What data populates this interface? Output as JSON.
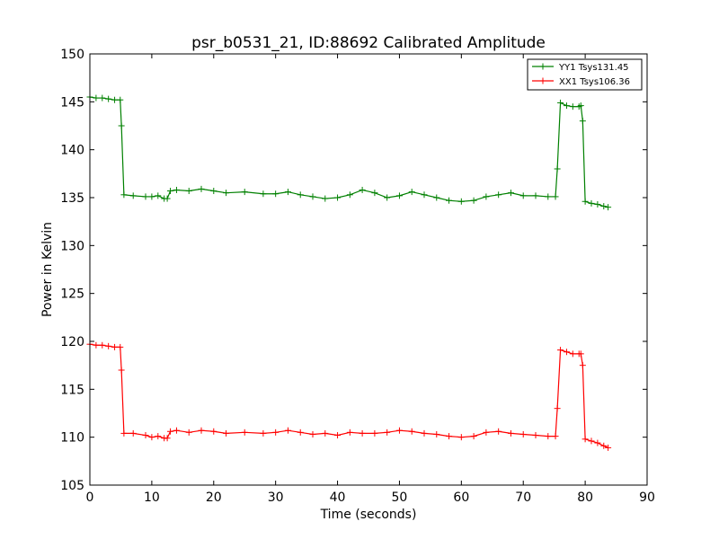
{
  "chart_data": {
    "type": "line",
    "title": "psr_b0531_21, ID:88692 Calibrated Amplitude",
    "xlabel": "Time (seconds)",
    "ylabel": "Power in Kelvin",
    "xlim": [
      0,
      90
    ],
    "ylim": [
      105,
      150
    ],
    "xticks": [
      0,
      10,
      20,
      30,
      40,
      50,
      60,
      70,
      80,
      90
    ],
    "yticks": [
      105,
      110,
      115,
      120,
      125,
      130,
      135,
      140,
      145,
      150
    ],
    "grid": false,
    "legend_position": "top-right",
    "series": [
      {
        "name": "YY1 Tsys131.45",
        "color": "#008000",
        "marker": "+",
        "x": [
          0,
          1,
          2,
          3,
          4,
          4.9,
          5.1,
          5.5,
          7,
          9,
          10,
          11,
          12,
          12.5,
          13,
          14,
          16,
          18,
          20,
          22,
          25,
          28,
          30,
          32,
          34,
          36,
          38,
          40,
          42,
          44,
          46,
          48,
          50,
          52,
          54,
          56,
          58,
          60,
          62,
          64,
          66,
          68,
          70,
          72,
          74,
          75.2,
          75.5,
          76,
          77,
          78,
          79,
          79.3,
          79.6,
          80,
          81,
          82,
          83,
          83.7
        ],
        "y": [
          145.5,
          145.4,
          145.4,
          145.3,
          145.2,
          145.2,
          142.5,
          135.3,
          135.2,
          135.1,
          135.1,
          135.2,
          134.9,
          134.9,
          135.7,
          135.8,
          135.7,
          135.9,
          135.7,
          135.5,
          135.6,
          135.4,
          135.4,
          135.6,
          135.3,
          135.1,
          134.9,
          135.0,
          135.3,
          135.8,
          135.5,
          135.0,
          135.2,
          135.6,
          135.3,
          135.0,
          134.7,
          134.6,
          134.7,
          135.1,
          135.3,
          135.5,
          135.2,
          135.2,
          135.1,
          135.1,
          138.0,
          144.9,
          144.6,
          144.5,
          144.5,
          144.6,
          143.0,
          134.6,
          134.4,
          134.3,
          134.1,
          134.0
        ]
      },
      {
        "name": "XX1 Tsys106.36",
        "color": "#ff0000",
        "marker": "+",
        "x": [
          0,
          1,
          2,
          3,
          4,
          4.9,
          5.1,
          5.5,
          7,
          9,
          10,
          11,
          12,
          12.5,
          13,
          14,
          16,
          18,
          20,
          22,
          25,
          28,
          30,
          32,
          34,
          36,
          38,
          40,
          42,
          44,
          46,
          48,
          50,
          52,
          54,
          56,
          58,
          60,
          62,
          64,
          66,
          68,
          70,
          72,
          74,
          75.2,
          75.5,
          76,
          77,
          78,
          79,
          79.3,
          79.6,
          80,
          81,
          82,
          83,
          83.7
        ],
        "y": [
          119.7,
          119.6,
          119.6,
          119.5,
          119.4,
          119.4,
          117.0,
          110.4,
          110.4,
          110.2,
          110.0,
          110.1,
          109.9,
          109.9,
          110.6,
          110.7,
          110.5,
          110.7,
          110.6,
          110.4,
          110.5,
          110.4,
          110.5,
          110.7,
          110.5,
          110.3,
          110.4,
          110.2,
          110.5,
          110.4,
          110.4,
          110.5,
          110.7,
          110.6,
          110.4,
          110.3,
          110.1,
          110.0,
          110.1,
          110.5,
          110.6,
          110.4,
          110.3,
          110.2,
          110.1,
          110.1,
          113.0,
          119.1,
          118.9,
          118.7,
          118.7,
          118.7,
          117.5,
          109.8,
          109.6,
          109.4,
          109.1,
          108.9
        ]
      }
    ]
  }
}
